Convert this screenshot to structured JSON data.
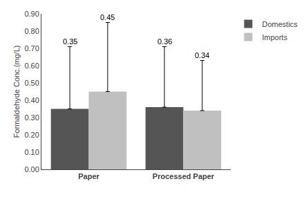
{
  "chart_data": {
    "type": "bar",
    "ylabel": "Formaldehyde Conc.(mg/L)",
    "categories": [
      "Paper",
      "Processed Paper"
    ],
    "series": [
      {
        "name": "Domestics",
        "color": "#555555",
        "values": [
          0.35,
          0.36
        ],
        "error_upper": [
          0.36,
          0.35
        ]
      },
      {
        "name": "Imports",
        "color": "#c0c0c0",
        "values": [
          0.45,
          0.34
        ],
        "error_upper": [
          0.4,
          0.29
        ]
      }
    ],
    "ylim": [
      0.0,
      0.9
    ],
    "yticks": [
      {
        "value": 0.0,
        "label": "0.00"
      },
      {
        "value": 0.1,
        "label": "0.10"
      },
      {
        "value": 0.2,
        "label": "0.20"
      },
      {
        "value": 0.3,
        "label": "0.30"
      },
      {
        "value": 0.4,
        "label": "0.40"
      },
      {
        "value": 0.5,
        "label": "0.50"
      },
      {
        "value": 0.6,
        "label": "0.60"
      },
      {
        "value": 0.7,
        "label": "0.70"
      },
      {
        "value": 0.8,
        "label": "0.80"
      },
      {
        "value": 0.9,
        "label": "0.90"
      }
    ],
    "data_labels": true,
    "legend": "upper right",
    "grid": false
  }
}
